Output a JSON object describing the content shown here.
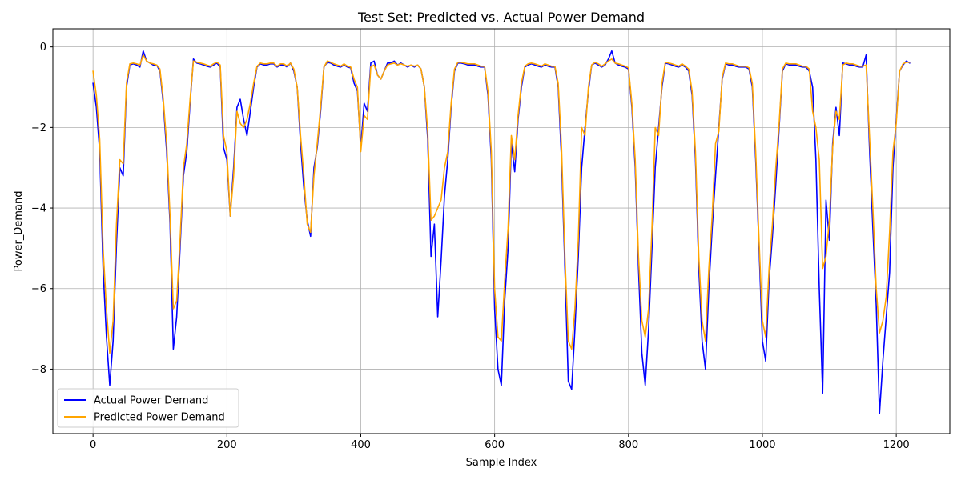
{
  "chart_data": {
    "type": "line",
    "title": "Test Set: Predicted vs. Actual Power Demand",
    "xlabel": "Sample Index",
    "ylabel": "Power_Demand",
    "xlim": [
      -60,
      1280
    ],
    "ylim": [
      -9.6,
      0.45
    ],
    "x_ticks": [
      0,
      200,
      400,
      600,
      800,
      1000,
      1200
    ],
    "y_ticks": [
      0,
      -2,
      -4,
      -6,
      -8
    ],
    "grid": true,
    "legend_position": "lower-left",
    "colors": {
      "actual": "#0000ff",
      "predicted": "#ffa500"
    },
    "series": [
      {
        "name": "Actual Power Demand",
        "color": "#0000ff",
        "x": [
          0,
          5,
          10,
          15,
          20,
          25,
          30,
          35,
          40,
          45,
          50,
          55,
          60,
          65,
          70,
          75,
          80,
          85,
          90,
          95,
          100,
          105,
          110,
          115,
          120,
          125,
          130,
          135,
          140,
          145,
          150,
          155,
          160,
          165,
          170,
          175,
          180,
          185,
          190,
          195,
          200,
          205,
          210,
          215,
          220,
          225,
          230,
          235,
          240,
          245,
          250,
          255,
          260,
          265,
          270,
          275,
          280,
          285,
          290,
          295,
          300,
          305,
          310,
          315,
          320,
          325,
          330,
          335,
          340,
          345,
          350,
          355,
          360,
          365,
          370,
          375,
          380,
          385,
          390,
          395,
          400,
          405,
          410,
          415,
          420,
          425,
          430,
          435,
          440,
          445,
          450,
          455,
          460,
          465,
          470,
          475,
          480,
          485,
          490,
          495,
          500,
          505,
          510,
          515,
          520,
          525,
          530,
          535,
          540,
          545,
          550,
          555,
          560,
          565,
          570,
          575,
          580,
          585,
          590,
          595,
          600,
          605,
          610,
          615,
          620,
          625,
          630,
          635,
          640,
          645,
          650,
          655,
          660,
          665,
          670,
          675,
          680,
          685,
          690,
          695,
          700,
          705,
          710,
          715,
          720,
          725,
          730,
          735,
          740,
          745,
          750,
          755,
          760,
          765,
          770,
          775,
          780,
          785,
          790,
          795,
          800,
          805,
          810,
          815,
          820,
          825,
          830,
          835,
          840,
          845,
          850,
          855,
          860,
          865,
          870,
          875,
          880,
          885,
          890,
          895,
          900,
          905,
          910,
          915,
          920,
          925,
          930,
          935,
          940,
          945,
          950,
          955,
          960,
          965,
          970,
          975,
          980,
          985,
          990,
          995,
          1000,
          1005,
          1010,
          1015,
          1020,
          1025,
          1030,
          1035,
          1040,
          1045,
          1050,
          1055,
          1060,
          1065,
          1070,
          1075,
          1080,
          1085,
          1090,
          1095,
          1100,
          1105,
          1110,
          1115,
          1120,
          1125,
          1130,
          1135,
          1140,
          1145,
          1150,
          1155,
          1160,
          1165,
          1170,
          1175,
          1180,
          1185,
          1190,
          1195,
          1200,
          1205,
          1210,
          1215,
          1220
        ],
        "values": [
          -0.9,
          -1.5,
          -2.6,
          -5.5,
          -7.2,
          -8.4,
          -7.3,
          -4.9,
          -3.0,
          -3.2,
          -1.0,
          -0.45,
          -0.42,
          -0.45,
          -0.5,
          -0.1,
          -0.35,
          -0.4,
          -0.45,
          -0.45,
          -0.6,
          -1.4,
          -2.6,
          -4.4,
          -7.5,
          -6.7,
          -5.0,
          -3.2,
          -2.6,
          -1.4,
          -0.3,
          -0.4,
          -0.42,
          -0.45,
          -0.48,
          -0.5,
          -0.45,
          -0.4,
          -0.5,
          -2.5,
          -2.8,
          -4.2,
          -3.0,
          -1.5,
          -1.3,
          -1.8,
          -2.2,
          -1.6,
          -1.0,
          -0.5,
          -0.42,
          -0.45,
          -0.45,
          -0.42,
          -0.42,
          -0.5,
          -0.45,
          -0.45,
          -0.5,
          -0.4,
          -0.6,
          -1.0,
          -2.4,
          -3.5,
          -4.3,
          -4.7,
          -3.0,
          -2.5,
          -1.6,
          -0.5,
          -0.38,
          -0.4,
          -0.45,
          -0.48,
          -0.5,
          -0.45,
          -0.5,
          -0.52,
          -0.9,
          -1.1,
          -2.5,
          -1.4,
          -1.6,
          -0.4,
          -0.35,
          -0.7,
          -0.8,
          -0.6,
          -0.4,
          -0.4,
          -0.35,
          -0.45,
          -0.4,
          -0.45,
          -0.5,
          -0.45,
          -0.5,
          -0.45,
          -0.55,
          -1.0,
          -2.3,
          -5.2,
          -4.4,
          -6.7,
          -5.3,
          -3.7,
          -2.8,
          -1.5,
          -0.6,
          -0.4,
          -0.4,
          -0.42,
          -0.45,
          -0.45,
          -0.45,
          -0.48,
          -0.5,
          -0.5,
          -1.2,
          -2.8,
          -6.5,
          -8.0,
          -8.4,
          -6.3,
          -5.0,
          -2.4,
          -3.1,
          -1.8,
          -1.0,
          -0.5,
          -0.45,
          -0.42,
          -0.45,
          -0.48,
          -0.5,
          -0.45,
          -0.48,
          -0.5,
          -0.5,
          -1.0,
          -2.8,
          -5.5,
          -8.3,
          -8.5,
          -7.0,
          -5.2,
          -3.0,
          -2.0,
          -1.1,
          -0.45,
          -0.4,
          -0.45,
          -0.5,
          -0.45,
          -0.3,
          -0.1,
          -0.4,
          -0.45,
          -0.48,
          -0.5,
          -0.55,
          -1.5,
          -3.0,
          -5.5,
          -7.6,
          -8.4,
          -7.0,
          -5.0,
          -3.0,
          -2.0,
          -1.0,
          -0.4,
          -0.42,
          -0.45,
          -0.48,
          -0.5,
          -0.45,
          -0.5,
          -0.6,
          -1.2,
          -2.8,
          -5.5,
          -7.3,
          -8.0,
          -6.0,
          -4.5,
          -3.2,
          -2.0,
          -0.8,
          -0.42,
          -0.45,
          -0.45,
          -0.48,
          -0.5,
          -0.5,
          -0.5,
          -0.55,
          -1.0,
          -2.8,
          -5.0,
          -7.3,
          -7.8,
          -5.8,
          -4.7,
          -3.4,
          -2.0,
          -0.6,
          -0.42,
          -0.45,
          -0.45,
          -0.45,
          -0.48,
          -0.5,
          -0.5,
          -0.6,
          -1.0,
          -2.8,
          -6.0,
          -8.6,
          -3.8,
          -4.8,
          -2.4,
          -1.5,
          -2.2,
          -0.4,
          -0.42,
          -0.45,
          -0.45,
          -0.48,
          -0.5,
          -0.5,
          -0.2,
          -2.5,
          -4.5,
          -6.4,
          -9.1,
          -7.8,
          -6.7,
          -5.6,
          -3.0,
          -1.8,
          -0.6,
          -0.45,
          -0.35,
          -0.4
        ]
      },
      {
        "name": "Predicted Power Demand",
        "color": "#ffa500",
        "x": [
          0,
          5,
          10,
          15,
          20,
          25,
          30,
          35,
          40,
          45,
          50,
          55,
          60,
          65,
          70,
          75,
          80,
          85,
          90,
          95,
          100,
          105,
          110,
          115,
          120,
          125,
          130,
          135,
          140,
          145,
          150,
          155,
          160,
          165,
          170,
          175,
          180,
          185,
          190,
          195,
          200,
          205,
          210,
          215,
          220,
          225,
          230,
          235,
          240,
          245,
          250,
          255,
          260,
          265,
          270,
          275,
          280,
          285,
          290,
          295,
          300,
          305,
          310,
          315,
          320,
          325,
          330,
          335,
          340,
          345,
          350,
          355,
          360,
          365,
          370,
          375,
          380,
          385,
          390,
          395,
          400,
          405,
          410,
          415,
          420,
          425,
          430,
          435,
          440,
          445,
          450,
          455,
          460,
          465,
          470,
          475,
          480,
          485,
          490,
          495,
          500,
          505,
          510,
          515,
          520,
          525,
          530,
          535,
          540,
          545,
          550,
          555,
          560,
          565,
          570,
          575,
          580,
          585,
          590,
          595,
          600,
          605,
          610,
          615,
          620,
          625,
          630,
          635,
          640,
          645,
          650,
          655,
          660,
          665,
          670,
          675,
          680,
          685,
          690,
          695,
          700,
          705,
          710,
          715,
          720,
          725,
          730,
          735,
          740,
          745,
          750,
          755,
          760,
          765,
          770,
          775,
          780,
          785,
          790,
          795,
          800,
          805,
          810,
          815,
          820,
          825,
          830,
          835,
          840,
          845,
          850,
          855,
          860,
          865,
          870,
          875,
          880,
          885,
          890,
          895,
          900,
          905,
          910,
          915,
          920,
          925,
          930,
          935,
          940,
          945,
          950,
          955,
          960,
          965,
          970,
          975,
          980,
          985,
          990,
          995,
          1000,
          1005,
          1010,
          1015,
          1020,
          1025,
          1030,
          1035,
          1040,
          1045,
          1050,
          1055,
          1060,
          1065,
          1070,
          1075,
          1080,
          1085,
          1090,
          1095,
          1100,
          1105,
          1110,
          1115,
          1120,
          1125,
          1130,
          1135,
          1140,
          1145,
          1150,
          1155,
          1160,
          1165,
          1170,
          1175,
          1180,
          1185,
          1190,
          1195,
          1200,
          1205,
          1210,
          1215,
          1220
        ],
        "values": [
          -0.6,
          -1.2,
          -2.3,
          -5.0,
          -6.5,
          -7.6,
          -6.8,
          -4.4,
          -2.8,
          -2.9,
          -0.9,
          -0.42,
          -0.4,
          -0.42,
          -0.45,
          -0.2,
          -0.35,
          -0.4,
          -0.42,
          -0.45,
          -0.55,
          -1.3,
          -2.4,
          -4.2,
          -6.5,
          -6.3,
          -4.8,
          -3.0,
          -2.4,
          -1.3,
          -0.35,
          -0.38,
          -0.4,
          -0.42,
          -0.45,
          -0.48,
          -0.42,
          -0.38,
          -0.45,
          -2.2,
          -2.6,
          -4.2,
          -3.2,
          -1.6,
          -1.9,
          -2.0,
          -1.8,
          -1.4,
          -0.9,
          -0.48,
          -0.4,
          -0.42,
          -0.42,
          -0.4,
          -0.4,
          -0.48,
          -0.42,
          -0.42,
          -0.48,
          -0.4,
          -0.55,
          -1.0,
          -2.2,
          -3.2,
          -4.4,
          -4.6,
          -3.2,
          -2.4,
          -1.5,
          -0.5,
          -0.35,
          -0.38,
          -0.42,
          -0.45,
          -0.48,
          -0.42,
          -0.48,
          -0.5,
          -0.8,
          -1.0,
          -2.6,
          -1.7,
          -1.8,
          -0.5,
          -0.45,
          -0.7,
          -0.8,
          -0.6,
          -0.45,
          -0.42,
          -0.4,
          -0.45,
          -0.42,
          -0.45,
          -0.48,
          -0.45,
          -0.48,
          -0.45,
          -0.55,
          -1.0,
          -2.1,
          -4.3,
          -4.2,
          -4.0,
          -3.8,
          -3.0,
          -2.6,
          -1.4,
          -0.55,
          -0.38,
          -0.38,
          -0.4,
          -0.42,
          -0.42,
          -0.42,
          -0.45,
          -0.48,
          -0.48,
          -1.1,
          -2.6,
          -6.0,
          -7.2,
          -7.3,
          -5.8,
          -4.5,
          -2.2,
          -2.8,
          -1.7,
          -0.9,
          -0.48,
          -0.42,
          -0.4,
          -0.42,
          -0.45,
          -0.48,
          -0.42,
          -0.45,
          -0.48,
          -0.48,
          -0.9,
          -2.5,
          -5.2,
          -7.3,
          -7.5,
          -6.5,
          -4.8,
          -2.0,
          -2.2,
          -1.0,
          -0.45,
          -0.38,
          -0.42,
          -0.48,
          -0.42,
          -0.35,
          -0.3,
          -0.4,
          -0.42,
          -0.45,
          -0.48,
          -0.52,
          -1.4,
          -2.8,
          -5.2,
          -6.8,
          -7.2,
          -6.5,
          -4.5,
          -2.0,
          -2.2,
          -0.9,
          -0.38,
          -0.4,
          -0.42,
          -0.45,
          -0.48,
          -0.42,
          -0.48,
          -0.55,
          -1.1,
          -2.6,
          -5.2,
          -6.8,
          -7.3,
          -5.5,
          -4.2,
          -2.4,
          -2.1,
          -0.75,
          -0.4,
          -0.42,
          -0.42,
          -0.45,
          -0.48,
          -0.48,
          -0.48,
          -0.52,
          -0.9,
          -2.6,
          -4.8,
          -6.8,
          -7.2,
          -5.5,
          -4.4,
          -3.0,
          -1.9,
          -0.55,
          -0.4,
          -0.42,
          -0.42,
          -0.42,
          -0.45,
          -0.48,
          -0.48,
          -0.55,
          -1.6,
          -2.0,
          -2.8,
          -5.5,
          -5.2,
          -4.3,
          -2.5,
          -1.6,
          -1.8,
          -0.45,
          -0.4,
          -0.42,
          -0.42,
          -0.45,
          -0.48,
          -0.48,
          -0.45,
          -2.2,
          -4.0,
          -6.0,
          -7.1,
          -6.8,
          -6.2,
          -4.6,
          -2.6,
          -1.9,
          -0.6,
          -0.42,
          -0.38,
          -0.38
        ]
      }
    ]
  }
}
